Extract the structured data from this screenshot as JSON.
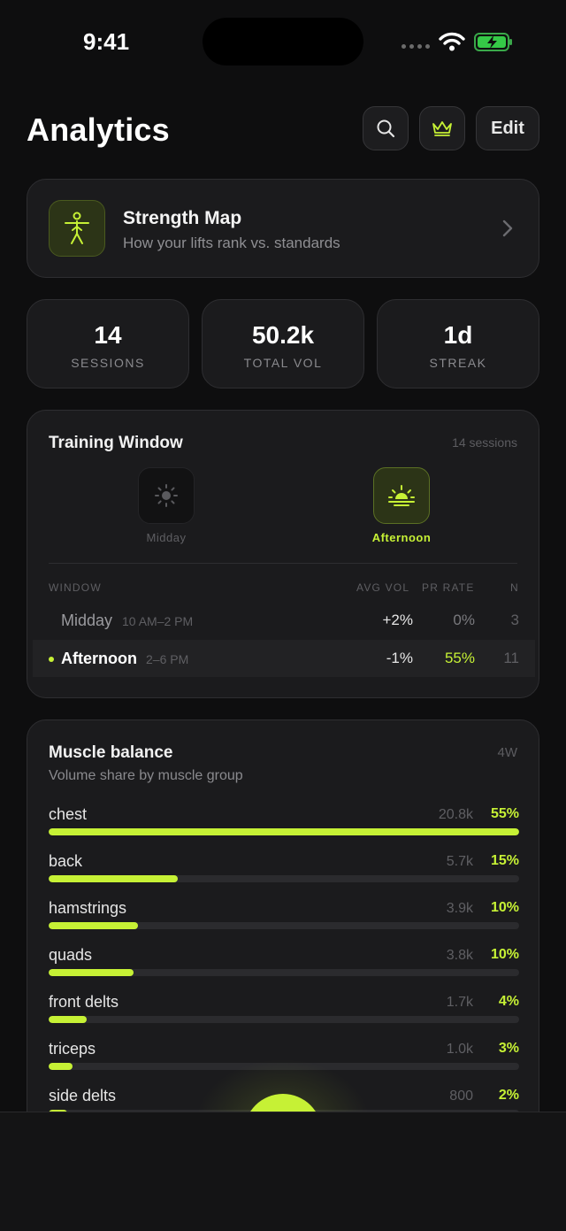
{
  "status_bar": {
    "time": "9:41"
  },
  "header": {
    "title": "Analytics",
    "edit_label": "Edit"
  },
  "strength_map": {
    "title": "Strength Map",
    "subtitle": "How your lifts rank vs. standards"
  },
  "stats": [
    {
      "value": "14",
      "label": "SESSIONS"
    },
    {
      "value": "50.2k",
      "label": "TOTAL VOL"
    },
    {
      "value": "1d",
      "label": "STREAK"
    }
  ],
  "training_window": {
    "title": "Training Window",
    "count": "14 sessions",
    "slots": [
      {
        "label": "Midday",
        "icon": "sun-icon",
        "selected": false
      },
      {
        "label": "Afternoon",
        "icon": "sunset-icon",
        "selected": true
      }
    ],
    "columns": [
      "WINDOW",
      "AVG VOL",
      "PR RATE",
      "N"
    ],
    "rows": [
      {
        "name": "Midday",
        "range": "10 AM–2 PM",
        "avg_vol": "+2%",
        "pr_rate": "0%",
        "n": "3"
      },
      {
        "name": "Afternoon",
        "range": "2–6 PM",
        "avg_vol": "-1%",
        "pr_rate": "55%",
        "n": "11"
      }
    ]
  },
  "muscle_balance": {
    "title": "Muscle balance",
    "subtitle": "Volume share by muscle group",
    "range": "4W",
    "groups": [
      {
        "name": "chest",
        "volume": "20.8k",
        "percent": "55%",
        "share": 1.0
      },
      {
        "name": "back",
        "volume": "5.7k",
        "percent": "15%",
        "share": 0.275
      },
      {
        "name": "hamstrings",
        "volume": "3.9k",
        "percent": "10%",
        "share": 0.19
      },
      {
        "name": "quads",
        "volume": "3.8k",
        "percent": "10%",
        "share": 0.18
      },
      {
        "name": "front delts",
        "volume": "1.7k",
        "percent": "4%",
        "share": 0.08
      },
      {
        "name": "triceps",
        "volume": "1.0k",
        "percent": "3%",
        "share": 0.05
      },
      {
        "name": "side delts",
        "volume": "800",
        "percent": "2%",
        "share": 0.04
      }
    ]
  },
  "colors": {
    "accent": "#c6f135",
    "background": "#0e0e0f",
    "card": "#1b1b1d"
  }
}
